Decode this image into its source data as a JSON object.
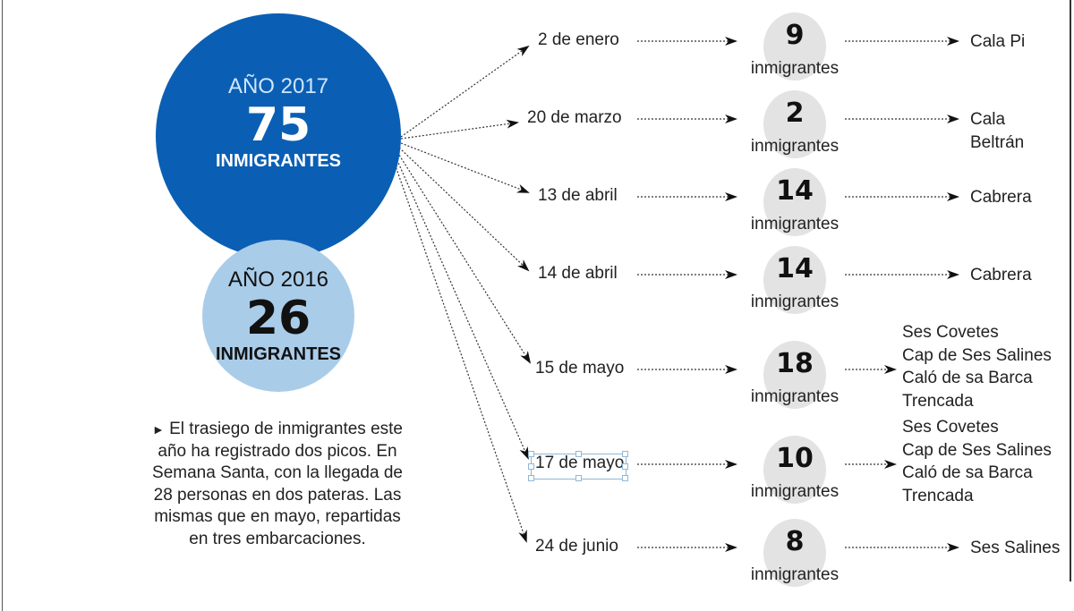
{
  "summary": {
    "year_2017": {
      "label": "AÑO 2017",
      "count": "75",
      "unit": "INMIGRANTES",
      "color": "#0a5fb4"
    },
    "year_2016": {
      "label": "AÑO 2016",
      "count": "26",
      "unit": "INMIGRANTES",
      "color": "#a9cce9"
    },
    "note_marker": "►",
    "note": "El trasiego de inmigrantes este año ha registrado dos picos. En Semana Santa, con la llegada de 28 personas en dos pateras. Las mismas que en mayo, repartidas en tres embarcaciones."
  },
  "arrivals": [
    {
      "date": "2 de enero",
      "count": "9",
      "unit": "inmigrantes",
      "places": [
        "Cala Pi"
      ]
    },
    {
      "date": "20 de marzo",
      "count": "2",
      "unit": "inmigrantes",
      "places": [
        "Cala",
        "Beltrán"
      ]
    },
    {
      "date": "13 de abril",
      "count": "14",
      "unit": "inmigrantes",
      "places": [
        "Cabrera"
      ]
    },
    {
      "date": "14 de abril",
      "count": "14",
      "unit": "inmigrantes",
      "places": [
        "Cabrera"
      ]
    },
    {
      "date": "15 de mayo",
      "count": "18",
      "unit": "inmigrantes",
      "places": [
        "Ses Covetes",
        "Cap de Ses Salines",
        "Caló de sa Barca",
        "Trencada"
      ]
    },
    {
      "date": "17 de mayo",
      "count": "10",
      "unit": "inmigrantes",
      "places": [
        "Ses Covetes",
        "Cap de Ses Salines",
        "Caló de sa Barca",
        "Trencada"
      ]
    },
    {
      "date": "24 de junio",
      "count": "8",
      "unit": "inmigrantes",
      "places": [
        "Ses Salines"
      ]
    }
  ]
}
